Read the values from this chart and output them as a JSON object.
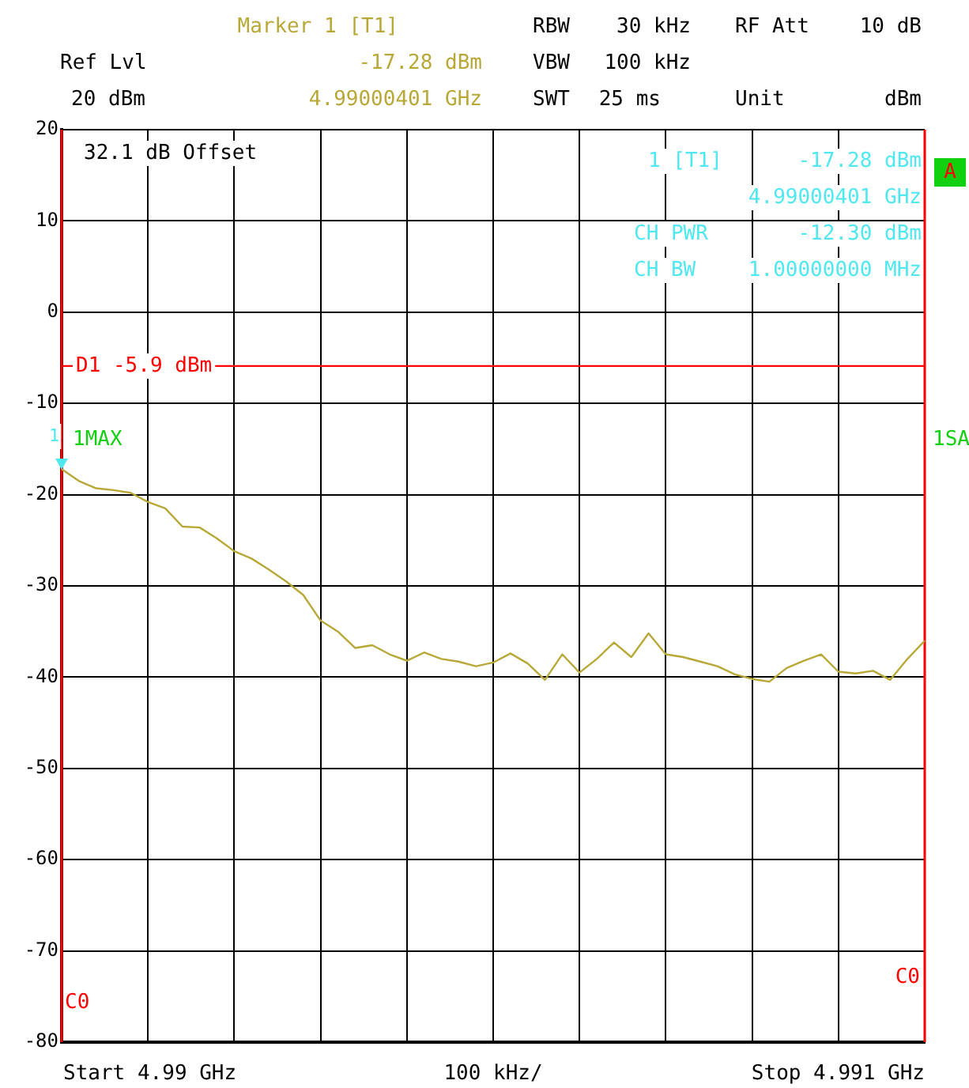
{
  "chart_data": {
    "type": "line",
    "xlabel": "100 kHz/",
    "categories": [
      null,
      null,
      null,
      null,
      null,
      null,
      null,
      null,
      null,
      null,
      null,
      null,
      null,
      null,
      null,
      null,
      null,
      null,
      null,
      null,
      null,
      null,
      null,
      null,
      null,
      null,
      null,
      null,
      null,
      null,
      null,
      null,
      null,
      null,
      null,
      null,
      null,
      null,
      null,
      null,
      null,
      null,
      null,
      null,
      null,
      null,
      null,
      null,
      null,
      null,
      null
    ],
    "series": [
      {
        "color": "#b8a838",
        "values": [
          -17.2,
          -18.5,
          -19.3,
          -19.5,
          -19.8,
          -20.8,
          -21.5,
          -23.5,
          -23.6,
          -24.8,
          -26.2,
          -27.0,
          -28.2,
          -29.5,
          -31.0,
          -33.8,
          -35.0,
          -36.8,
          -36.5,
          -37.5,
          -38.2,
          -37.3,
          -38.0,
          -38.3,
          -38.8,
          -38.4,
          -37.4,
          -38.5,
          -40.3,
          -37.5,
          -39.5,
          -38.0,
          -36.2,
          -37.8,
          -35.2,
          -37.5,
          -37.8,
          -38.3,
          -38.8,
          -39.7,
          -40.2,
          -40.5,
          -39.0,
          -38.2,
          -37.5,
          -39.4,
          -39.6,
          -39.3,
          -40.3,
          -38.0,
          -36.0
        ]
      }
    ],
    "ylim": [
      -80,
      20
    ],
    "yticks": [
      -80,
      -70,
      -60,
      -50,
      -40,
      -30,
      -20,
      -10,
      0,
      10,
      20
    ],
    "grid": true,
    "tick_labels": "y",
    "legend": false,
    "line_style": "solid",
    "ref_lines": [
      {
        "axis": "y",
        "value": -5.9,
        "label": "D1 -5.9 dBm",
        "color": "#ff0000"
      }
    ],
    "annotations": [
      "Marker 1 [T1]",
      "-17.28 dBm",
      "4.99000401 GHz",
      "RBW",
      "30 kHz",
      "RF Att",
      "10 dB",
      "Ref Lvl",
      "20 dBm",
      "VBW",
      "100 kHz",
      "SWT",
      "25 ms",
      "Unit",
      "dBm",
      "32.1 dB Offset",
      "1 [T1]",
      "-17.28 dBm",
      "4.99000401 GHz",
      "CH PWR",
      "-12.30 dBm",
      "CH BW",
      "1.00000000 MHz",
      "1MAX",
      "1SA",
      "A",
      "Start 4.99 GHz",
      "Stop 4.991 GHz",
      "1",
      "C0",
      "C0"
    ]
  }
}
